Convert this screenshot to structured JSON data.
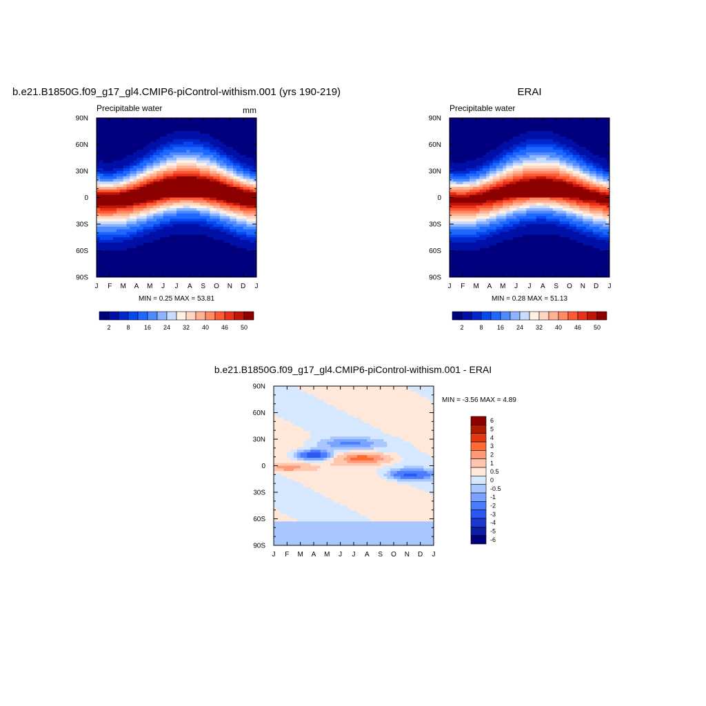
{
  "figure": {
    "panels": {
      "model": {
        "title": "b.e21.B1850G.f09_g17_gl4.CMIP6-piControl-withism.001 (yrs 190-219)",
        "left_label": "Precipitable water",
        "right_label": "mm",
        "minmax": "MIN =   0.25 MAX =  53.81"
      },
      "obs": {
        "title": "ERAI",
        "left_label": "Precipitable water",
        "minmax": "MIN =   0.28 MAX =  51.13"
      },
      "diff": {
        "title": "b.e21.B1850G.f09_g17_gl4.CMIP6-piControl-withism.001 - ERAI",
        "minmax": "MIN =  -3.56 MAX =    4.89"
      }
    },
    "colorbar_top": {
      "colors": [
        "#00007f",
        "#0010a6",
        "#0027cc",
        "#0648f0",
        "#1e68ff",
        "#4e8bff",
        "#8cb3ff",
        "#c7dcff",
        "#fff1e4",
        "#ffd6c2",
        "#ffb194",
        "#ff8a64",
        "#ff5a33",
        "#e8311a",
        "#c2150a",
        "#8c0000"
      ],
      "labels": [
        "2",
        "8",
        "16",
        "24",
        "32",
        "40",
        "46",
        "50"
      ]
    },
    "colorbar_diff": {
      "colors": [
        "#8c0000",
        "#b21a00",
        "#e03a10",
        "#ff6a33",
        "#ff9a78",
        "#ffc7b0",
        "#ffe8da",
        "#d6e8ff",
        "#a9c6ff",
        "#7aa3ff",
        "#4a7cff",
        "#2a58f0",
        "#1a38cc",
        "#0a1fa6",
        "#00007f"
      ],
      "labels": [
        "6",
        "5",
        "4",
        "3",
        "2",
        "1",
        "0.5",
        "0",
        "-0.5",
        "-1",
        "-2",
        "-3",
        "-4",
        "-5",
        "-6"
      ]
    }
  },
  "chart_data": [
    {
      "type": "heatmap",
      "title": "b.e21.B1850G.f09_g17_gl4.CMIP6-piControl-withism.001 (yrs 190-219)",
      "subtitle": "Precipitable water",
      "units": "mm",
      "x_ticks": [
        "J",
        "F",
        "M",
        "A",
        "M",
        "J",
        "J",
        "A",
        "S",
        "O",
        "N",
        "D",
        "J"
      ],
      "y_ticks": [
        "90N",
        "60N",
        "30N",
        "0",
        "30S",
        "60S",
        "90S"
      ],
      "ylim": [
        -90,
        90
      ],
      "min": 0.25,
      "max": 53.81,
      "contour_levels": [
        2,
        4,
        6,
        8,
        12,
        16,
        20,
        24,
        28,
        32,
        36,
        40,
        44,
        46,
        48,
        50
      ],
      "colorbar_labels": [
        "2",
        "8",
        "16",
        "24",
        "32",
        "40",
        "46",
        "50"
      ]
    },
    {
      "type": "heatmap",
      "title": "ERAI",
      "subtitle": "Precipitable water",
      "x_ticks": [
        "J",
        "F",
        "M",
        "A",
        "M",
        "J",
        "J",
        "A",
        "S",
        "O",
        "N",
        "D",
        "J"
      ],
      "y_ticks": [
        "90N",
        "60N",
        "30N",
        "0",
        "30S",
        "60S",
        "90S"
      ],
      "ylim": [
        -90,
        90
      ],
      "min": 0.28,
      "max": 51.13,
      "contour_levels": [
        2,
        4,
        6,
        8,
        12,
        16,
        20,
        24,
        28,
        32,
        36,
        40,
        44,
        46,
        48,
        50
      ],
      "colorbar_labels": [
        "2",
        "8",
        "16",
        "24",
        "32",
        "40",
        "46",
        "50"
      ]
    },
    {
      "type": "heatmap",
      "title": "b.e21.B1850G.f09_g17_gl4.CMIP6-piControl-withism.001 - ERAI",
      "x_ticks": [
        "J",
        "F",
        "M",
        "A",
        "M",
        "J",
        "J",
        "A",
        "S",
        "O",
        "N",
        "D",
        "J"
      ],
      "y_ticks": [
        "90N",
        "60N",
        "30N",
        "0",
        "30S",
        "60S",
        "90S"
      ],
      "ylim": [
        -90,
        90
      ],
      "min": -3.56,
      "max": 4.89,
      "contour_levels": [
        -6,
        -5,
        -4,
        -3,
        -2,
        -1,
        -0.5,
        0,
        0.5,
        1,
        2,
        3,
        4,
        5,
        6
      ],
      "colorbar_labels": [
        "6",
        "5",
        "4",
        "3",
        "2",
        "1",
        "0.5",
        "0",
        "-0.5",
        "-1",
        "-2",
        "-3",
        "-4",
        "-5",
        "-6"
      ]
    }
  ]
}
